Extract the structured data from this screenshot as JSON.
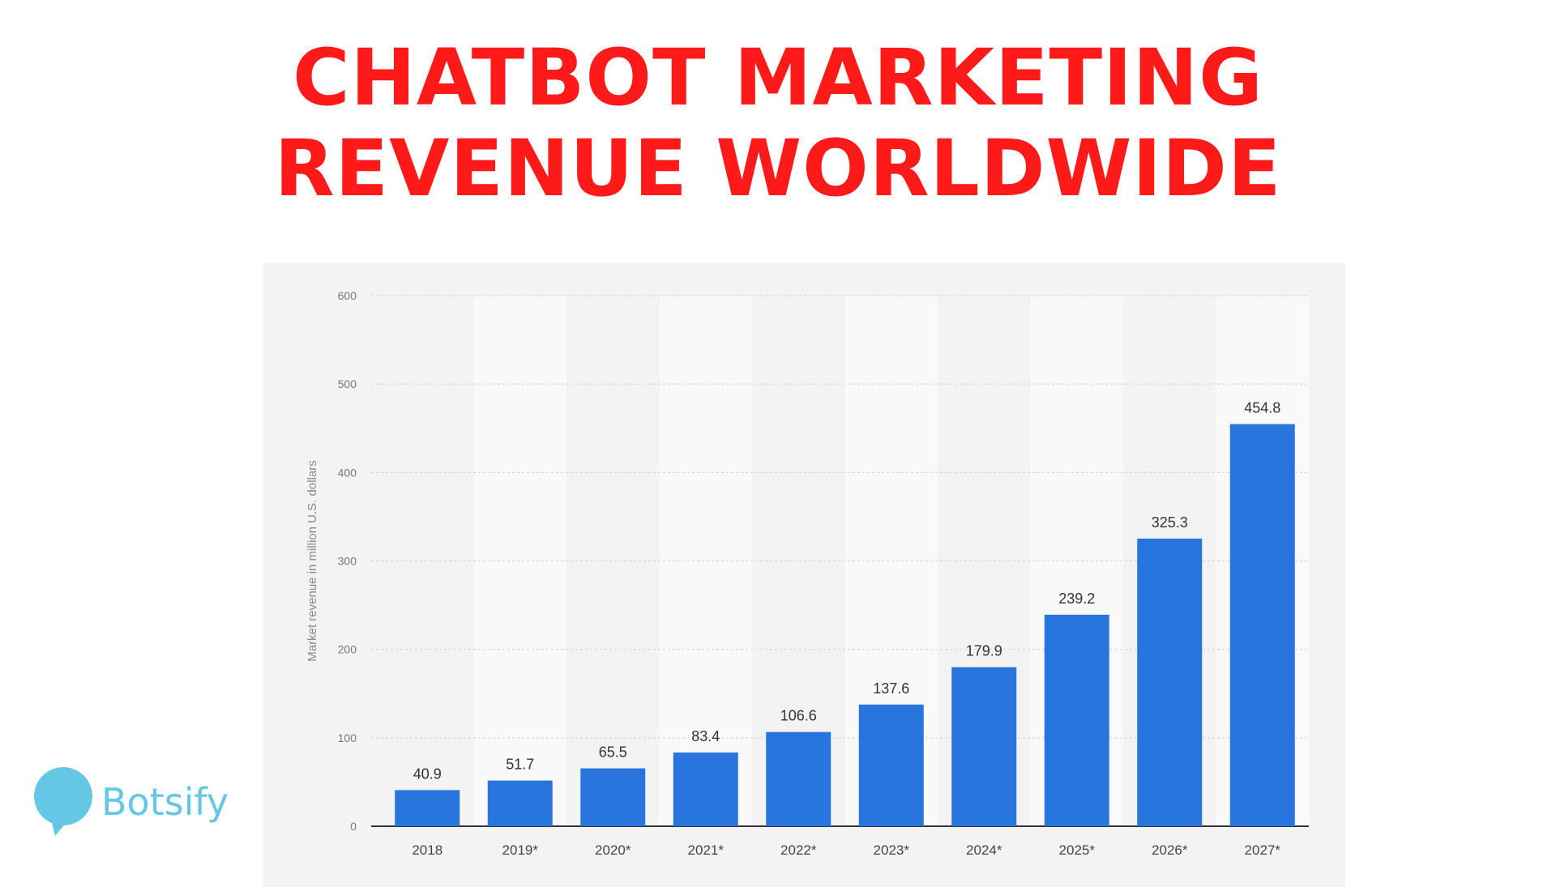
{
  "header": {
    "line1": "CHATBOT MARKETING",
    "line2": "REVENUE WORLDWIDE"
  },
  "logo": {
    "text": "Botsify",
    "color": "#64c8e4"
  },
  "chart_data": {
    "type": "bar",
    "categories": [
      "2018",
      "2019*",
      "2020*",
      "2021*",
      "2022*",
      "2023*",
      "2024*",
      "2025*",
      "2026*",
      "2027*"
    ],
    "values": [
      40.9,
      51.7,
      65.5,
      83.4,
      106.6,
      137.6,
      179.9,
      239.2,
      325.3,
      454.8
    ],
    "value_labels": [
      "40.9",
      "51.7",
      "65.5",
      "83.4",
      "106.6",
      "137.6",
      "179.9",
      "239.2",
      "325.3",
      "454.8"
    ],
    "ylabel": "Market revenue in million U.S. dollars",
    "ylim": [
      0,
      600
    ],
    "yticks": [
      0,
      100,
      200,
      300,
      400,
      500,
      600
    ],
    "grid": true,
    "bar_color": "#2876dd",
    "title_color": "#ff1a1a"
  }
}
